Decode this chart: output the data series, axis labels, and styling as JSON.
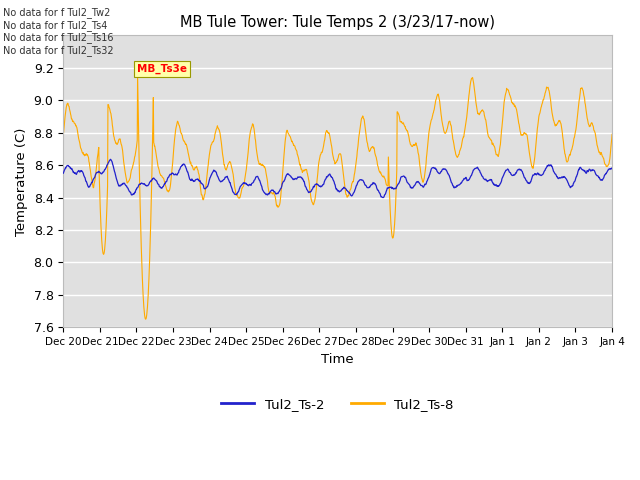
{
  "title": "MB Tule Tower: Tule Temps 2 (3/23/17-now)",
  "xlabel": "Time",
  "ylabel": "Temperature (C)",
  "ylim": [
    7.6,
    9.4
  ],
  "yticks": [
    7.6,
    7.8,
    8.0,
    8.2,
    8.4,
    8.6,
    8.8,
    9.0,
    9.2
  ],
  "legend_labels": [
    "Tul2_Ts-2",
    "Tul2_Ts-8"
  ],
  "blue_color": "#2222cc",
  "orange_color": "#ffaa00",
  "background_color": "#ffffff",
  "plot_bg_color": "#e0e0e0",
  "grid_color": "#ffffff",
  "no_data_lines": [
    "No data for f Tul2_Tw2",
    "No data for f Tul2_Ts4",
    "No data for f Tul2_Ts16",
    "No data for f Tul2_Ts32"
  ],
  "tooltip_text": "MB_Ts3e",
  "num_points": 1500,
  "seed": 7
}
